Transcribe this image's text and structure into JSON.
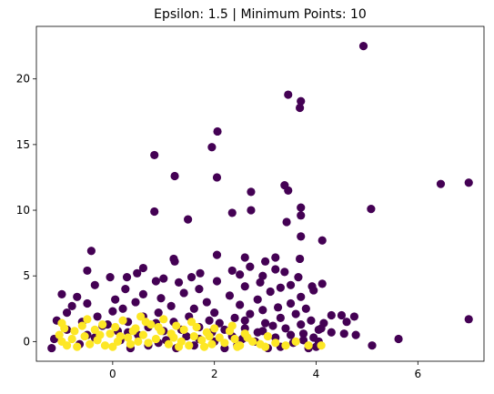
{
  "chart_data": {
    "type": "scatter",
    "title": "Epsilon: 1.5 | Minimum Points: 10",
    "xlabel": "",
    "ylabel": "",
    "xlim": [
      -1.5,
      7.3
    ],
    "ylim": [
      -1.5,
      24.0
    ],
    "xticks": [
      0,
      2,
      4,
      6
    ],
    "yticks": [
      0,
      5,
      10,
      15,
      20
    ],
    "grid": false,
    "legend": "none",
    "colors": {
      "noise": "#440154",
      "cluster": "#fde725"
    },
    "series": [
      {
        "role": "noise",
        "points": [
          [
            4.93,
            22.5
          ],
          [
            3.45,
            18.8
          ],
          [
            3.7,
            18.3
          ],
          [
            3.68,
            17.8
          ],
          [
            2.06,
            16.0
          ],
          [
            1.95,
            14.8
          ],
          [
            0.82,
            14.2
          ],
          [
            1.22,
            12.6
          ],
          [
            2.05,
            12.5
          ],
          [
            6.45,
            12.0
          ],
          [
            7.0,
            12.1
          ],
          [
            3.38,
            11.9
          ],
          [
            3.45,
            11.5
          ],
          [
            2.72,
            11.4
          ],
          [
            5.08,
            10.1
          ],
          [
            3.7,
            10.2
          ],
          [
            2.72,
            10.0
          ],
          [
            0.82,
            9.9
          ],
          [
            2.35,
            9.8
          ],
          [
            3.7,
            9.6
          ],
          [
            1.48,
            9.3
          ],
          [
            3.42,
            9.1
          ],
          [
            3.7,
            8.0
          ],
          [
            4.12,
            7.7
          ],
          [
            -0.42,
            6.9
          ],
          [
            2.05,
            6.6
          ],
          [
            1.2,
            6.3
          ],
          [
            1.22,
            6.1
          ],
          [
            2.6,
            6.4
          ],
          [
            3.2,
            6.4
          ],
          [
            3.68,
            6.3
          ],
          [
            3.0,
            6.1
          ],
          [
            2.7,
            5.7
          ],
          [
            3.2,
            5.5
          ],
          [
            0.6,
            5.6
          ],
          [
            -0.5,
            5.4
          ],
          [
            0.48,
            5.2
          ],
          [
            3.38,
            5.3
          ],
          [
            2.35,
            5.4
          ],
          [
            1.72,
            5.2
          ],
          [
            2.5,
            5.1
          ],
          [
            2.95,
            5.0
          ],
          [
            -0.05,
            4.9
          ],
          [
            0.28,
            4.9
          ],
          [
            1.0,
            4.8
          ],
          [
            1.55,
            4.9
          ],
          [
            3.65,
            4.9
          ],
          [
            4.12,
            4.4
          ],
          [
            0.85,
            4.6
          ],
          [
            2.05,
            4.6
          ],
          [
            2.9,
            4.5
          ],
          [
            3.5,
            4.3
          ],
          [
            3.92,
            4.2
          ],
          [
            -0.35,
            4.3
          ],
          [
            1.3,
            4.5
          ],
          [
            2.6,
            4.2
          ],
          [
            3.3,
            4.1
          ],
          [
            3.95,
            3.9
          ],
          [
            -1.0,
            3.6
          ],
          [
            0.25,
            4.0
          ],
          [
            1.7,
            4.0
          ],
          [
            3.1,
            3.8
          ],
          [
            -0.7,
            3.4
          ],
          [
            0.6,
            3.6
          ],
          [
            1.4,
            3.7
          ],
          [
            2.3,
            3.5
          ],
          [
            3.7,
            3.4
          ],
          [
            0.05,
            3.2
          ],
          [
            0.95,
            3.3
          ],
          [
            2.85,
            3.2
          ],
          [
            -0.5,
            2.9
          ],
          [
            0.45,
            3.0
          ],
          [
            1.85,
            3.0
          ],
          [
            3.5,
            2.9
          ],
          [
            -0.8,
            2.7
          ],
          [
            1.15,
            2.7
          ],
          [
            2.5,
            2.8
          ],
          [
            3.25,
            2.6
          ],
          [
            0.2,
            2.5
          ],
          [
            1.6,
            2.5
          ],
          [
            2.95,
            2.4
          ],
          [
            3.8,
            2.5
          ],
          [
            4.3,
            2.0
          ],
          [
            4.5,
            2.0
          ],
          [
            4.75,
            1.9
          ],
          [
            4.15,
            1.4
          ],
          [
            4.6,
            1.5
          ],
          [
            4.05,
            0.9
          ],
          [
            4.3,
            0.7
          ],
          [
            4.55,
            0.6
          ],
          [
            4.78,
            0.5
          ],
          [
            -0.9,
            2.2
          ],
          [
            0.0,
            2.3
          ],
          [
            0.9,
            2.2
          ],
          [
            2.0,
            2.2
          ],
          [
            2.7,
            2.1
          ],
          [
            3.6,
            2.1
          ],
          [
            -0.3,
            1.9
          ],
          [
            0.6,
            1.9
          ],
          [
            1.5,
            1.9
          ],
          [
            2.4,
            1.8
          ],
          [
            3.3,
            1.8
          ],
          [
            3.9,
            1.6
          ],
          [
            -1.1,
            1.6
          ],
          [
            -0.6,
            1.5
          ],
          [
            0.3,
            1.5
          ],
          [
            1.2,
            1.5
          ],
          [
            2.1,
            1.4
          ],
          [
            3.0,
            1.4
          ],
          [
            3.7,
            1.3
          ],
          [
            -0.2,
            1.2
          ],
          [
            0.7,
            1.1
          ],
          [
            1.7,
            1.1
          ],
          [
            2.6,
            1.0
          ],
          [
            3.4,
            1.0
          ],
          [
            4.1,
            1.0
          ],
          [
            -0.9,
            0.9
          ],
          [
            0.1,
            0.8
          ],
          [
            1.0,
            0.8
          ],
          [
            1.95,
            0.7
          ],
          [
            2.85,
            0.7
          ],
          [
            3.75,
            0.6
          ],
          [
            -0.5,
            0.5
          ],
          [
            0.5,
            0.5
          ],
          [
            1.45,
            0.4
          ],
          [
            2.35,
            0.4
          ],
          [
            3.2,
            0.3
          ],
          [
            3.95,
            0.3
          ],
          [
            -1.15,
            0.2
          ],
          [
            0.15,
            0.1
          ],
          [
            1.05,
            0.1
          ],
          [
            2.0,
            0.0
          ],
          [
            2.8,
            0.0
          ],
          [
            3.55,
            -0.1
          ],
          [
            -0.65,
            -0.2
          ],
          [
            0.7,
            -0.3
          ],
          [
            1.6,
            -0.3
          ],
          [
            2.45,
            -0.3
          ],
          [
            3.3,
            -0.4
          ],
          [
            4.0,
            -0.4
          ],
          [
            -1.2,
            -0.5
          ],
          [
            0.35,
            -0.5
          ],
          [
            1.25,
            -0.5
          ],
          [
            2.2,
            -0.5
          ],
          [
            3.05,
            -0.5
          ],
          [
            3.85,
            -0.5
          ],
          [
            5.1,
            -0.3
          ],
          [
            5.62,
            0.2
          ],
          [
            7.0,
            1.7
          ],
          [
            2.6,
            1.6
          ],
          [
            1.9,
            1.6
          ],
          [
            0.85,
            1.4
          ],
          [
            -0.1,
            1.3
          ],
          [
            3.15,
            1.2
          ],
          [
            1.35,
            0.9
          ],
          [
            2.2,
            0.9
          ],
          [
            0.3,
            0.7
          ],
          [
            2.95,
            0.8
          ],
          [
            3.5,
            0.5
          ],
          [
            1.7,
            0.2
          ],
          [
            2.55,
            0.2
          ],
          [
            0.9,
            -0.1
          ],
          [
            -0.35,
            0.3
          ],
          [
            3.75,
            0.1
          ],
          [
            4.05,
            0.0
          ]
        ]
      },
      {
        "role": "cluster",
        "points": [
          [
            -1.0,
            1.4
          ],
          [
            -0.95,
            1.0
          ],
          [
            -1.05,
            0.5
          ],
          [
            -1.0,
            0.0
          ],
          [
            -0.9,
            -0.3
          ],
          [
            -0.8,
            0.2
          ],
          [
            -0.75,
            0.8
          ],
          [
            -0.6,
            1.2
          ],
          [
            -0.55,
            0.4
          ],
          [
            -0.45,
            -0.2
          ],
          [
            -0.35,
            0.9
          ],
          [
            -0.3,
            0.1
          ],
          [
            -0.2,
            1.3
          ],
          [
            -0.15,
            -0.3
          ],
          [
            -0.05,
            0.6
          ],
          [
            0.05,
            1.1
          ],
          [
            0.1,
            0.0
          ],
          [
            0.2,
            1.6
          ],
          [
            0.3,
            0.3
          ],
          [
            0.35,
            -0.2
          ],
          [
            0.45,
            1.0
          ],
          [
            0.55,
            1.9
          ],
          [
            0.6,
            0.5
          ],
          [
            0.7,
            -0.1
          ],
          [
            0.75,
            1.3
          ],
          [
            0.85,
            0.2
          ],
          [
            0.95,
            0.8
          ],
          [
            1.0,
            1.7
          ],
          [
            1.1,
            -0.2
          ],
          [
            1.15,
            0.6
          ],
          [
            1.25,
            1.2
          ],
          [
            1.35,
            0.0
          ],
          [
            1.4,
            0.9
          ],
          [
            1.5,
            -0.3
          ],
          [
            1.6,
            0.4
          ],
          [
            1.65,
            1.1
          ],
          [
            1.75,
            0.1
          ],
          [
            1.85,
            0.7
          ],
          [
            1.95,
            -0.2
          ],
          [
            2.0,
            1.0
          ],
          [
            2.1,
            0.3
          ],
          [
            2.2,
            -0.1
          ],
          [
            2.3,
            0.8
          ],
          [
            2.4,
            0.2
          ],
          [
            2.5,
            -0.3
          ],
          [
            2.6,
            0.6
          ],
          [
            2.75,
            0.0
          ],
          [
            2.9,
            -0.2
          ],
          [
            3.05,
            0.4
          ],
          [
            3.2,
            -0.1
          ],
          [
            3.4,
            -0.3
          ],
          [
            3.6,
            0.0
          ],
          [
            3.85,
            -0.3
          ],
          [
            4.1,
            -0.3
          ],
          [
            -0.7,
            -0.4
          ],
          [
            0.0,
            -0.4
          ],
          [
            0.5,
            0.0
          ],
          [
            1.3,
            -0.4
          ],
          [
            1.8,
            -0.4
          ],
          [
            2.45,
            -0.4
          ],
          [
            3.0,
            -0.4
          ],
          [
            -0.25,
            0.5
          ],
          [
            0.4,
            0.8
          ],
          [
            1.2,
            0.3
          ],
          [
            1.9,
            0.4
          ],
          [
            2.65,
            0.3
          ],
          [
            0.15,
            0.4
          ],
          [
            0.9,
            1.1
          ],
          [
            1.55,
            1.5
          ],
          [
            2.35,
            1.2
          ],
          [
            -0.5,
            1.7
          ],
          [
            0.65,
            1.5
          ]
        ]
      }
    ]
  }
}
